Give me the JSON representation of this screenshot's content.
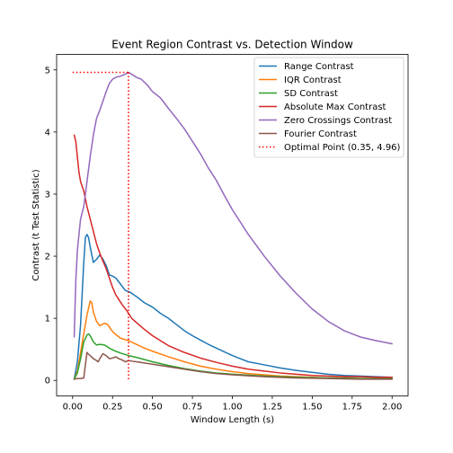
{
  "chart_data": {
    "type": "line",
    "title": "Event Region Contrast vs. Detection Window",
    "xlabel": "Window Length (s)",
    "ylabel": "Contrast (t Test Statistic)",
    "xlim": [
      -0.1,
      2.1
    ],
    "ylim": [
      -0.25,
      5.25
    ],
    "xticks": [
      0.0,
      0.25,
      0.5,
      0.75,
      1.0,
      1.25,
      1.5,
      1.75,
      2.0
    ],
    "xtick_labels": [
      "0.00",
      "0.25",
      "0.50",
      "0.75",
      "1.00",
      "1.25",
      "1.50",
      "1.75",
      "2.00"
    ],
    "yticks": [
      0,
      1,
      2,
      3,
      4,
      5
    ],
    "ytick_labels": [
      "0",
      "1",
      "2",
      "3",
      "4",
      "5"
    ],
    "grid": false,
    "legend_position": "top-right",
    "series": [
      {
        "name": "Range Contrast",
        "color": "#1f77b4",
        "x": [
          0.01,
          0.03,
          0.05,
          0.07,
          0.08,
          0.09,
          0.1,
          0.11,
          0.13,
          0.15,
          0.17,
          0.19,
          0.21,
          0.23,
          0.25,
          0.27,
          0.3,
          0.33,
          0.36,
          0.4,
          0.45,
          0.5,
          0.55,
          0.6,
          0.65,
          0.7,
          0.75,
          0.8,
          0.85,
          0.9,
          0.95,
          1.0,
          1.05,
          1.1,
          1.2,
          1.3,
          1.4,
          1.5,
          1.6,
          1.7,
          1.8,
          1.9,
          2.0
        ],
        "y": [
          0.02,
          0.3,
          0.9,
          1.9,
          2.3,
          2.35,
          2.3,
          2.15,
          1.9,
          1.95,
          2.02,
          1.95,
          1.85,
          1.7,
          1.68,
          1.65,
          1.55,
          1.45,
          1.42,
          1.35,
          1.25,
          1.18,
          1.08,
          1.0,
          0.9,
          0.8,
          0.72,
          0.65,
          0.58,
          0.52,
          0.46,
          0.4,
          0.35,
          0.3,
          0.25,
          0.2,
          0.16,
          0.13,
          0.1,
          0.08,
          0.07,
          0.06,
          0.05
        ]
      },
      {
        "name": "IQR Contrast",
        "color": "#ff7f0e",
        "x": [
          0.01,
          0.03,
          0.05,
          0.07,
          0.09,
          0.11,
          0.12,
          0.13,
          0.15,
          0.17,
          0.2,
          0.22,
          0.24,
          0.26,
          0.28,
          0.3,
          0.35,
          0.4,
          0.45,
          0.5,
          0.6,
          0.7,
          0.8,
          0.9,
          1.0,
          1.1,
          1.2,
          1.3,
          1.4,
          1.5,
          1.6,
          1.7,
          1.8,
          1.9,
          2.0
        ],
        "y": [
          0.02,
          0.15,
          0.45,
          0.75,
          1.05,
          1.28,
          1.25,
          1.1,
          0.95,
          0.88,
          0.92,
          0.9,
          0.82,
          0.76,
          0.72,
          0.68,
          0.64,
          0.58,
          0.52,
          0.47,
          0.38,
          0.3,
          0.23,
          0.18,
          0.14,
          0.11,
          0.09,
          0.07,
          0.06,
          0.05,
          0.04,
          0.04,
          0.03,
          0.03,
          0.03
        ]
      },
      {
        "name": "SD Contrast",
        "color": "#2ca02c",
        "x": [
          0.01,
          0.03,
          0.05,
          0.07,
          0.09,
          0.1,
          0.11,
          0.13,
          0.15,
          0.17,
          0.2,
          0.23,
          0.26,
          0.3,
          0.35,
          0.4,
          0.5,
          0.6,
          0.7,
          0.8,
          0.9,
          1.0,
          1.2,
          1.4,
          1.6,
          1.8,
          2.0
        ],
        "y": [
          0.02,
          0.12,
          0.35,
          0.62,
          0.73,
          0.75,
          0.72,
          0.62,
          0.57,
          0.58,
          0.57,
          0.52,
          0.48,
          0.44,
          0.4,
          0.37,
          0.3,
          0.24,
          0.19,
          0.15,
          0.12,
          0.1,
          0.07,
          0.05,
          0.04,
          0.03,
          0.03
        ]
      },
      {
        "name": "Absolute Max Contrast",
        "color": "#d62728",
        "x": [
          0.01,
          0.02,
          0.03,
          0.04,
          0.05,
          0.07,
          0.09,
          0.11,
          0.13,
          0.15,
          0.17,
          0.19,
          0.21,
          0.23,
          0.25,
          0.27,
          0.29,
          0.31,
          0.34,
          0.37,
          0.4,
          0.45,
          0.5,
          0.55,
          0.6,
          0.7,
          0.8,
          0.9,
          1.0,
          1.1,
          1.2,
          1.3,
          1.4,
          1.5,
          1.6,
          1.7,
          1.8,
          1.9,
          2.0
        ],
        "y": [
          3.95,
          3.85,
          3.6,
          3.35,
          3.2,
          3.05,
          2.8,
          2.6,
          2.4,
          2.2,
          2.05,
          1.92,
          1.8,
          1.65,
          1.5,
          1.38,
          1.3,
          1.22,
          1.12,
          1.0,
          0.93,
          0.82,
          0.72,
          0.64,
          0.56,
          0.45,
          0.36,
          0.29,
          0.23,
          0.18,
          0.15,
          0.12,
          0.1,
          0.08,
          0.07,
          0.06,
          0.06,
          0.05,
          0.05
        ]
      },
      {
        "name": "Zero Crossings Contrast",
        "color": "#9467bd",
        "x": [
          0.01,
          0.02,
          0.03,
          0.05,
          0.07,
          0.09,
          0.11,
          0.13,
          0.15,
          0.17,
          0.19,
          0.21,
          0.23,
          0.25,
          0.27,
          0.3,
          0.33,
          0.35,
          0.37,
          0.4,
          0.43,
          0.47,
          0.5,
          0.55,
          0.6,
          0.65,
          0.7,
          0.75,
          0.8,
          0.85,
          0.9,
          0.95,
          1.0,
          1.1,
          1.2,
          1.3,
          1.4,
          1.5,
          1.6,
          1.7,
          1.8,
          1.9,
          2.0
        ],
        "y": [
          0.7,
          1.6,
          2.1,
          2.6,
          2.8,
          3.2,
          3.6,
          3.95,
          4.22,
          4.35,
          4.5,
          4.65,
          4.78,
          4.85,
          4.88,
          4.9,
          4.93,
          4.96,
          4.93,
          4.88,
          4.85,
          4.75,
          4.65,
          4.55,
          4.38,
          4.22,
          4.05,
          3.85,
          3.65,
          3.42,
          3.22,
          2.98,
          2.75,
          2.35,
          2.0,
          1.68,
          1.4,
          1.15,
          0.95,
          0.8,
          0.7,
          0.64,
          0.59
        ]
      },
      {
        "name": "Fourier Contrast",
        "color": "#8c564b",
        "x": [
          0.01,
          0.03,
          0.05,
          0.07,
          0.08,
          0.09,
          0.1,
          0.11,
          0.13,
          0.15,
          0.16,
          0.17,
          0.19,
          0.21,
          0.23,
          0.25,
          0.27,
          0.29,
          0.31,
          0.33,
          0.35,
          0.37,
          0.4,
          0.45,
          0.5,
          0.55,
          0.6,
          0.7,
          0.8,
          0.9,
          1.0,
          1.2,
          1.4,
          1.6,
          1.8,
          2.0
        ],
        "y": [
          0.02,
          0.03,
          0.03,
          0.04,
          0.25,
          0.45,
          0.42,
          0.4,
          0.35,
          0.32,
          0.3,
          0.35,
          0.43,
          0.4,
          0.35,
          0.36,
          0.38,
          0.35,
          0.33,
          0.3,
          0.32,
          0.31,
          0.3,
          0.28,
          0.26,
          0.24,
          0.22,
          0.18,
          0.14,
          0.11,
          0.09,
          0.06,
          0.04,
          0.03,
          0.02,
          0.02
        ]
      }
    ],
    "optimal_point": {
      "name": "Optimal Point (0.35, 4.96)",
      "color": "#ff0000",
      "x": 0.35,
      "y": 4.96
    }
  }
}
